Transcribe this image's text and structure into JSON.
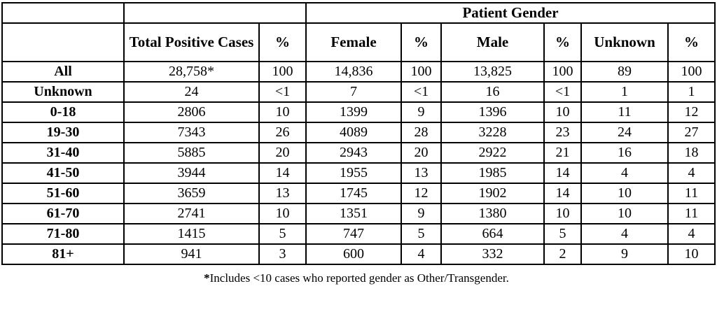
{
  "table": {
    "gender_group_header": "Patient Gender",
    "col_headers": {
      "total": "Total Positive Cases",
      "pct": "%",
      "female": "Female",
      "male": "Male",
      "unknown": "Unknown"
    },
    "rows": [
      [
        "All",
        "28,758*",
        "100",
        "14,836",
        "100",
        "13,825",
        "100",
        "89",
        "100"
      ],
      [
        "Unknown",
        "24",
        "<1",
        "7",
        "<1",
        "16",
        "<1",
        "1",
        "1"
      ],
      [
        "0-18",
        "2806",
        "10",
        "1399",
        "9",
        "1396",
        "10",
        "11",
        "12"
      ],
      [
        "19-30",
        "7343",
        "26",
        "4089",
        "28",
        "3228",
        "23",
        "24",
        "27"
      ],
      [
        "31-40",
        "5885",
        "20",
        "2943",
        "20",
        "2922",
        "21",
        "16",
        "18"
      ],
      [
        "41-50",
        "3944",
        "14",
        "1955",
        "13",
        "1985",
        "14",
        "4",
        "4"
      ],
      [
        "51-60",
        "3659",
        "13",
        "1745",
        "12",
        "1902",
        "14",
        "10",
        "11"
      ],
      [
        "61-70",
        "2741",
        "10",
        "1351",
        "9",
        "1380",
        "10",
        "10",
        "11"
      ],
      [
        "71-80",
        "1415",
        "5",
        "747",
        "5",
        "664",
        "5",
        "4",
        "4"
      ],
      [
        "81+",
        "941",
        "3",
        "600",
        "4",
        "332",
        "2",
        "9",
        "10"
      ]
    ]
  },
  "footnote": {
    "marker": "*",
    "text": "Includes <10 cases who reported gender as Other/Transgender."
  }
}
